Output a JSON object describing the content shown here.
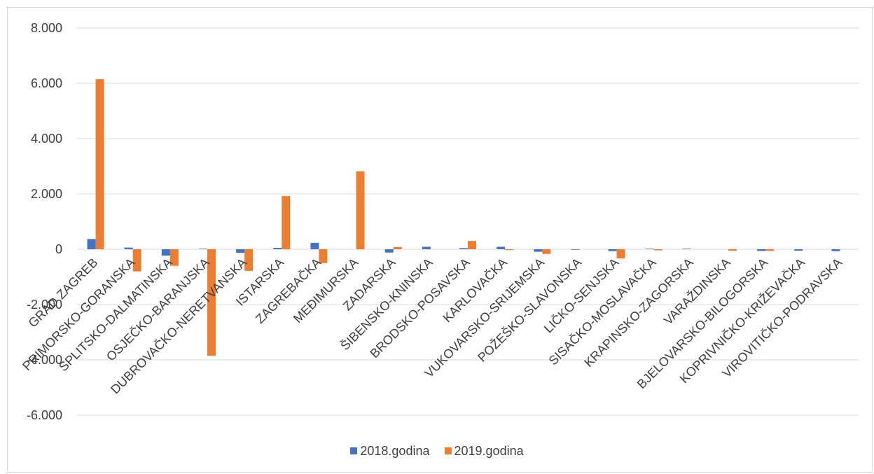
{
  "chart_data": {
    "type": "bar",
    "title": "",
    "xlabel": "",
    "ylabel": "",
    "ylim": [
      -6000,
      8000
    ],
    "yticks": [
      8000,
      6000,
      4000,
      2000,
      0,
      -2000,
      -4000,
      -6000
    ],
    "ytick_labels": [
      "8.000",
      "6.000",
      "4.000",
      "2.000",
      "0",
      "-2.000",
      "-4.000",
      "-6.000"
    ],
    "grid": true,
    "legend_position": "bottom",
    "categories": [
      "GRAD ZAGREB",
      "PRIMORSKO-GORANSKA",
      "SPLITSKO-DALMATINSKA",
      "OSJEČKO-BARANJSKA",
      "DUBROVAČKO-NERETVANSKA",
      "ISTARSKA",
      "ZAGREBAČKA",
      "MEĐIMURSKA",
      "ZADARSKA",
      "ŠIBENSKO-KNINSKA",
      "BRODSKO-POSAVSKA",
      "KARLOVAČKA",
      "VUKOVARSKO-SRIJEMSKA",
      "POŽEŠKO-SLAVONSKA",
      "LIČKO-SENJSKA",
      "SISAČKO-MOSLAVAČKA",
      "KRAPINSKO-ZAGORSKA",
      "VARAŽDINSKA",
      "BJELOVARSKO-BILOGORSKA",
      "KOPRIVNIČKO-KRIŽEVAČKA",
      "VIROVITIČKO-PODRAVSKA"
    ],
    "series": [
      {
        "name": "2018.godina",
        "color": "#4472C4",
        "values": [
          370,
          60,
          -230,
          20,
          -130,
          50,
          230,
          0,
          -120,
          90,
          40,
          90,
          -90,
          -20,
          -70,
          20,
          20,
          0,
          -60,
          -50,
          -70
        ]
      },
      {
        "name": "2019.godina",
        "color": "#ED7D31",
        "values": [
          6150,
          -800,
          -600,
          -3850,
          -780,
          1920,
          -500,
          2820,
          80,
          0,
          300,
          -30,
          -170,
          0,
          -330,
          -40,
          0,
          -50,
          -60,
          0,
          0
        ]
      }
    ]
  }
}
